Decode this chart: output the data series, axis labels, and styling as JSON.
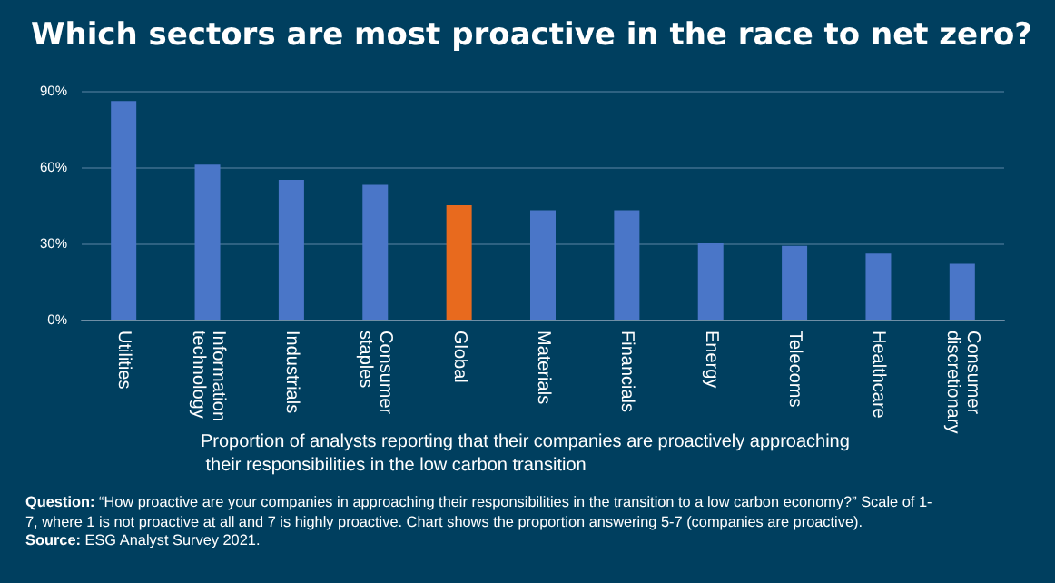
{
  "chart_data": {
    "type": "bar",
    "title": "Which sectors are most proactive in the race to net zero?",
    "categories": [
      "Utilities",
      "Information technology",
      "Industrials",
      "Consumer staples",
      "Global",
      "Materials",
      "Financials",
      "Energy",
      "Telecoms",
      "Healthcare",
      "Consumer discretionary"
    ],
    "values": [
      86,
      61,
      55,
      53,
      45,
      43,
      43,
      30,
      29,
      26,
      22
    ],
    "colors": [
      "#4a76c8",
      "#4a76c8",
      "#4a76c8",
      "#4a76c8",
      "#e86a1e",
      "#4a76c8",
      "#4a76c8",
      "#4a76c8",
      "#4a76c8",
      "#4a76c8",
      "#4a76c8"
    ],
    "xlabel": "Proportion of analysts reporting that their companies are proactively approaching their responsibilities in the low carbon transition",
    "ylim": [
      0,
      90
    ],
    "yticks": [
      {
        "value": 0,
        "label": "0%"
      },
      {
        "value": 30,
        "label": "30%"
      },
      {
        "value": 60,
        "label": "60%"
      },
      {
        "value": 90,
        "label": "90%"
      }
    ],
    "grid": "y",
    "annotations": [
      "Question: “How proactive are your companies in approaching their responsibilities in the transition to a low carbon economy?” Scale of 1-7, where 1 is not proactive at all and 7 is highly proactive. Chart shows the proportion answering 5-7 (companies are proactive).",
      "Source: ESG Analyst Survey 2021."
    ]
  }
}
